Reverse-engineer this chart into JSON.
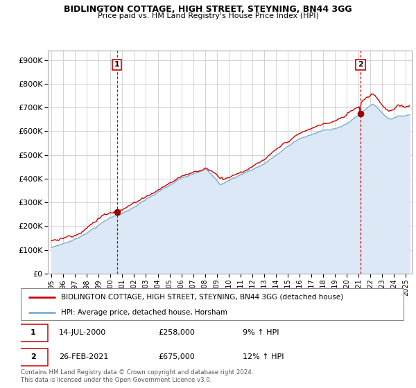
{
  "title1": "BIDLINGTON COTTAGE, HIGH STREET, STEYNING, BN44 3GG",
  "title2": "Price paid vs. HM Land Registry's House Price Index (HPI)",
  "ylabel_ticks": [
    "£0",
    "£100K",
    "£200K",
    "£300K",
    "£400K",
    "£500K",
    "£600K",
    "£700K",
    "£800K",
    "£900K"
  ],
  "ytick_values": [
    0,
    100000,
    200000,
    300000,
    400000,
    500000,
    600000,
    700000,
    800000,
    900000
  ],
  "ylim": [
    0,
    940000
  ],
  "xlim_start": 1994.7,
  "xlim_end": 2025.5,
  "grid_color": "#cccccc",
  "red_line_color": "#cc0000",
  "blue_line_color": "#7bafd4",
  "blue_fill_color": "#dce8f5",
  "marker1_x": 2000.54,
  "marker1_y": 258000,
  "marker2_x": 2021.15,
  "marker2_y": 675000,
  "vline1_x": 2000.54,
  "vline2_x": 2021.15,
  "vline_color": "#cc0000",
  "annotation1_label": "1",
  "annotation2_label": "2",
  "legend_red_label": "BIDLINGTON COTTAGE, HIGH STREET, STEYNING, BN44 3GG (detached house)",
  "legend_blue_label": "HPI: Average price, detached house, Horsham",
  "table_row1": [
    "1",
    "14-JUL-2000",
    "£258,000",
    "9% ↑ HPI"
  ],
  "table_row2": [
    "2",
    "26-FEB-2021",
    "£675,000",
    "12% ↑ HPI"
  ],
  "footnote": "Contains HM Land Registry data © Crown copyright and database right 2024.\nThis data is licensed under the Open Government Licence v3.0.",
  "xtick_years": [
    1995,
    1996,
    1997,
    1998,
    1999,
    2000,
    2001,
    2002,
    2003,
    2004,
    2005,
    2006,
    2007,
    2008,
    2009,
    2010,
    2011,
    2012,
    2013,
    2014,
    2015,
    2016,
    2017,
    2018,
    2019,
    2020,
    2021,
    2022,
    2023,
    2024,
    2025
  ]
}
